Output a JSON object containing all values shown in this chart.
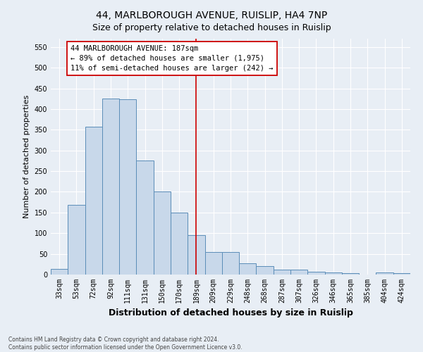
{
  "title": "44, MARLBOROUGH AVENUE, RUISLIP, HA4 7NP",
  "subtitle": "Size of property relative to detached houses in Ruislip",
  "xlabel": "Distribution of detached houses by size in Ruislip",
  "ylabel": "Number of detached properties",
  "categories": [
    "33sqm",
    "53sqm",
    "72sqm",
    "92sqm",
    "111sqm",
    "131sqm",
    "150sqm",
    "170sqm",
    "189sqm",
    "209sqm",
    "229sqm",
    "248sqm",
    "268sqm",
    "287sqm",
    "307sqm",
    "326sqm",
    "346sqm",
    "365sqm",
    "385sqm",
    "404sqm",
    "424sqm"
  ],
  "values": [
    13,
    168,
    357,
    425,
    424,
    275,
    200,
    149,
    95,
    55,
    55,
    27,
    20,
    12,
    12,
    7,
    5,
    3,
    0,
    5,
    3
  ],
  "bar_color": "#c8d8ea",
  "bar_edge_color": "#5b8db8",
  "red_line_x": 8.0,
  "red_line_color": "#cc0000",
  "annotation_text": "44 MARLBOROUGH AVENUE: 187sqm\n← 89% of detached houses are smaller (1,975)\n11% of semi-detached houses are larger (242) →",
  "annotation_box_color": "#ffffff",
  "annotation_box_edge": "#cc0000",
  "ylim": [
    0,
    570
  ],
  "yticks": [
    0,
    50,
    100,
    150,
    200,
    250,
    300,
    350,
    400,
    450,
    500,
    550
  ],
  "background_color": "#e8eef5",
  "grid_color": "#ffffff",
  "footer_line1": "Contains HM Land Registry data © Crown copyright and database right 2024.",
  "footer_line2": "Contains public sector information licensed under the Open Government Licence v3.0.",
  "title_fontsize": 10,
  "subtitle_fontsize": 9,
  "ylabel_fontsize": 8,
  "xlabel_fontsize": 9,
  "tick_fontsize": 7,
  "annot_fontsize": 7.5,
  "footer_fontsize": 5.5
}
